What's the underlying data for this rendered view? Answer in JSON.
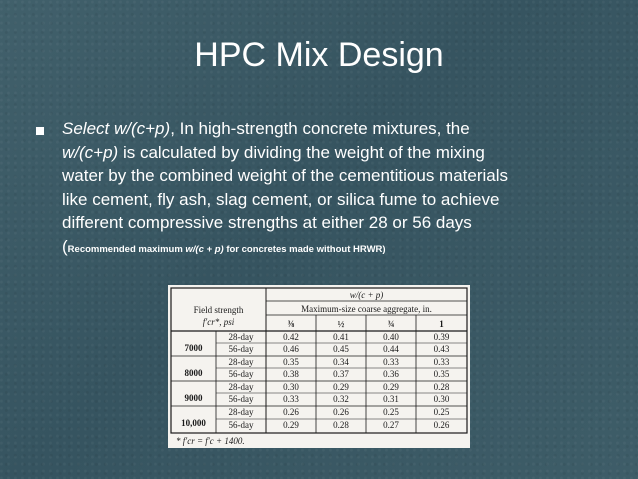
{
  "slide": {
    "title": "HPC Mix Design",
    "bullet": {
      "intro_italic": "Select w/(c+p)",
      "intro_rest": ", In high-strength concrete mixtures, the",
      "line2_italic": "w/(c+p)",
      "line2_rest": " is calculated by dividing the weight of the mixing",
      "line3": "water by the combined weight of the cementitious materials",
      "line4": "like cement, fly ash, slag cement, or silica fume to achieve",
      "line5": "different compressive strengths at either 28 or 56 days",
      "note_open": "(",
      "note_a": "Recommended maximum ",
      "note_b": "w/(c + p)",
      "note_c": " for concretes made without HRWR)"
    }
  },
  "table": {
    "top_header": "w/(c + p)",
    "sub_header": "Maximum-size coarse aggregate, in.",
    "field_strength": "Field strength",
    "fcr_psi": "f′cr*, psi",
    "size_cols": [
      "⅜",
      "½",
      "¾",
      "1"
    ],
    "rows": [
      {
        "strength": "7000",
        "age": "28-day",
        "values": [
          "0.42",
          "0.41",
          "0.40",
          "0.39"
        ]
      },
      {
        "strength": "",
        "age": "56-day",
        "values": [
          "0.46",
          "0.45",
          "0.44",
          "0.43"
        ]
      },
      {
        "strength": "8000",
        "age": "28-day",
        "values": [
          "0.35",
          "0.34",
          "0.33",
          "0.33"
        ]
      },
      {
        "strength": "",
        "age": "56-day",
        "values": [
          "0.38",
          "0.37",
          "0.36",
          "0.35"
        ]
      },
      {
        "strength": "9000",
        "age": "28-day",
        "values": [
          "0.30",
          "0.29",
          "0.29",
          "0.28"
        ]
      },
      {
        "strength": "",
        "age": "56-day",
        "values": [
          "0.33",
          "0.32",
          "0.31",
          "0.30"
        ]
      },
      {
        "strength": "10,000",
        "age": "28-day",
        "values": [
          "0.26",
          "0.26",
          "0.25",
          "0.25"
        ]
      },
      {
        "strength": "",
        "age": "56-day",
        "values": [
          "0.29",
          "0.28",
          "0.27",
          "0.26"
        ]
      }
    ],
    "footnote": "* f′cr = f′c + 1400."
  },
  "colors": {
    "background": "#3b5863",
    "text": "#ffffff",
    "table_paper": "#f5f3ef",
    "table_ink": "#1a1a1a"
  }
}
